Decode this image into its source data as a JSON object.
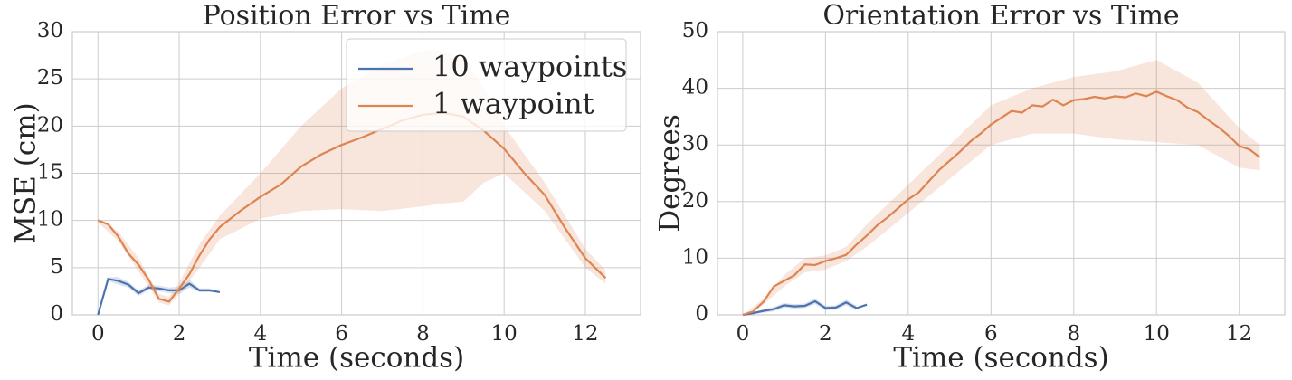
{
  "chart_data": [
    {
      "type": "line",
      "title": "Position Error vs Time",
      "xlabel": "Time (seconds)",
      "ylabel": "MSE (cm)",
      "xlim": [
        -0.63,
        13.36
      ],
      "ylim": [
        0,
        30
      ],
      "xticks": [
        0,
        2,
        4,
        6,
        8,
        10,
        12
      ],
      "yticks": [
        0,
        5,
        10,
        15,
        20,
        25,
        30
      ],
      "grid": true,
      "legend": "upper right",
      "series": [
        {
          "name": "10 waypoints",
          "color": "#4c72b0",
          "x": [
            0,
            0.25,
            0.5,
            0.75,
            1,
            1.25,
            1.5,
            1.75,
            2,
            2.25,
            2.5,
            2.75,
            3
          ],
          "values": [
            0,
            3.8,
            3.6,
            3.2,
            2.3,
            2.9,
            2.8,
            2.6,
            2.6,
            3.3,
            2.6,
            2.6,
            2.4
          ],
          "band": {
            "x": [
              0,
              0.25,
              0.5,
              0.75,
              1,
              1.25,
              1.5,
              1.75,
              2,
              2.25,
              2.5,
              2.75,
              3
            ],
            "lower": [
              0,
              3.6,
              3.2,
              2.9,
              2.0,
              2.6,
              2.5,
              2.3,
              2.2,
              2.9,
              2.4,
              2.4,
              2.4
            ],
            "upper": [
              0,
              4.0,
              4.0,
              3.5,
              2.6,
              3.2,
              3.1,
              2.9,
              3.0,
              3.7,
              2.8,
              2.8,
              2.4
            ]
          }
        },
        {
          "name": "1 waypoint",
          "color": "#dd8452",
          "x": [
            0,
            0.25,
            0.5,
            0.75,
            1,
            1.25,
            1.5,
            1.75,
            2,
            2.25,
            2.5,
            2.75,
            3,
            3.5,
            4,
            4.5,
            5,
            5.5,
            6,
            6.5,
            7,
            7.5,
            8,
            8.5,
            9,
            9.5,
            10,
            10.5,
            11,
            11.5,
            12,
            12.5
          ],
          "values": [
            10,
            9.6,
            8.3,
            6.5,
            5.3,
            3.7,
            1.7,
            1.4,
            2.8,
            4.3,
            6.3,
            8,
            9.3,
            11,
            12.5,
            13.8,
            15.7,
            17,
            18,
            18.8,
            19.7,
            20.6,
            21.2,
            21.4,
            21,
            19.5,
            17.6,
            15,
            12.7,
            9.2,
            6.0,
            3.9
          ],
          "band": {
            "x": [
              0,
              0.5,
              1,
              1.5,
              1.75,
              2,
              2.5,
              3,
              4,
              5,
              6,
              7,
              8,
              8.5,
              9,
              9.5,
              10,
              11,
              12,
              12.5
            ],
            "lower": [
              9.8,
              7.8,
              4.6,
              1.3,
              1.0,
              2.2,
              5.0,
              8.0,
              10.2,
              11.0,
              11.2,
              11.0,
              11.5,
              11.8,
              12.0,
              14.0,
              15.0,
              11.0,
              5.0,
              3.3
            ],
            "upper": [
              10.2,
              8.8,
              6.0,
              2.2,
              1.9,
              3.4,
              7.5,
              10.5,
              15.0,
              20.0,
              24.0,
              26.5,
              28.0,
              28.0,
              27.0,
              24.0,
              20.0,
              14.0,
              7.0,
              4.7
            ]
          }
        }
      ]
    },
    {
      "type": "line",
      "title": "Orientation Error vs Time",
      "xlabel": "Time (seconds)",
      "ylabel": "Degrees",
      "xlim": [
        -0.61,
        13.1
      ],
      "ylim": [
        0,
        50
      ],
      "xticks": [
        0,
        2,
        4,
        6,
        8,
        10,
        12
      ],
      "yticks": [
        0,
        10,
        20,
        30,
        40,
        50
      ],
      "grid": true,
      "series": [
        {
          "color": "#4c72b0",
          "x": [
            0,
            0.25,
            0.5,
            0.75,
            1,
            1.25,
            1.5,
            1.75,
            2,
            2.25,
            2.5,
            2.75,
            3
          ],
          "values": [
            0,
            0.3,
            0.7,
            1.0,
            1.7,
            1.5,
            1.6,
            2.4,
            1.2,
            1.3,
            2.2,
            1.2,
            1.8
          ],
          "band": {
            "x": [
              0,
              0.25,
              0.5,
              0.75,
              1,
              1.25,
              1.5,
              1.75,
              2,
              2.25,
              2.5,
              2.75
            ],
            "lower": [
              0,
              0.1,
              0.4,
              0.6,
              1.3,
              1.1,
              1.2,
              1.9,
              0.8,
              0.9,
              1.7,
              0.8
            ],
            "upper": [
              0,
              0.5,
              1.0,
              1.4,
              2.1,
              1.9,
              2.0,
              2.9,
              1.6,
              1.7,
              2.7,
              1.6
            ]
          }
        },
        {
          "color": "#dd8452",
          "x": [
            0,
            0.25,
            0.5,
            0.75,
            1,
            1.25,
            1.5,
            1.75,
            2,
            2.25,
            2.5,
            2.75,
            3,
            3.25,
            3.5,
            3.75,
            4,
            4.25,
            4.5,
            4.75,
            5,
            5.25,
            5.5,
            5.75,
            6,
            6.25,
            6.5,
            6.75,
            7,
            7.25,
            7.5,
            7.75,
            8,
            8.25,
            8.5,
            8.75,
            9,
            9.25,
            9.5,
            9.75,
            10,
            10.25,
            10.5,
            10.75,
            11,
            11.25,
            11.5,
            11.75,
            12,
            12.25,
            12.5
          ],
          "values": [
            0,
            0.6,
            2.3,
            5,
            6,
            7,
            8.9,
            8.8,
            9.5,
            10,
            10.6,
            12.4,
            14,
            15.8,
            17.2,
            18.8,
            20.4,
            21.6,
            23.6,
            25.6,
            27.2,
            28.8,
            30.6,
            32,
            33.6,
            34.8,
            36,
            35.7,
            37,
            36.8,
            38,
            37,
            37.9,
            38.1,
            38.5,
            38.2,
            38.6,
            38.4,
            39.1,
            38.6,
            39.4,
            38.6,
            37.9,
            36.6,
            35.8,
            34.4,
            33.1,
            31.6,
            29.8,
            29.2,
            27.8
          ],
          "band": {
            "x": [
              0,
              0.5,
              1,
              1.5,
              2,
              2.5,
              3,
              4,
              5,
              6,
              7,
              8,
              9,
              10,
              11,
              12,
              12.5
            ],
            "lower": [
              0,
              1.8,
              5.0,
              7.5,
              8.0,
              9.5,
              12.0,
              18.0,
              24.0,
              30.0,
              32.0,
              32.0,
              31.0,
              30.5,
              30.0,
              26.0,
              25.5
            ],
            "upper": [
              0,
              2.8,
              7.0,
              10.0,
              10.5,
              12.0,
              16.0,
              23.0,
              30.0,
              37.0,
              40.0,
              42.0,
              43.0,
              45.0,
              41.0,
              33.0,
              30.0
            ]
          }
        }
      ]
    }
  ]
}
